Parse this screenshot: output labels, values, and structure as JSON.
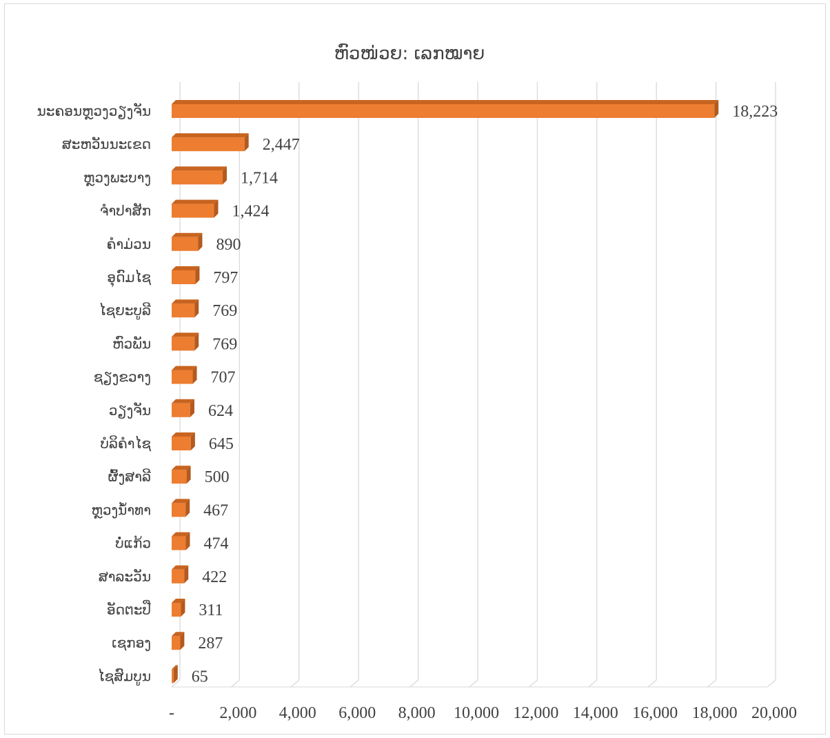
{
  "chart_data": {
    "type": "bar",
    "orientation": "horizontal",
    "title": "ຫົວໜ່ວຍ: ເລກໝາຍ",
    "categories": [
      "ນະຄອນຫຼວງວຽງຈັນ",
      "ສະຫວັນນະເຂດ",
      "ຫຼວງພະບາງ",
      "ຈຳປາສັກ",
      "ຄຳມ່ວນ",
      "ອຸດົມໄຊ",
      "ໄຊຍະບູລີ",
      "ຫົວພັນ",
      "ຊຽງຂວາງ",
      "ວຽງຈັນ",
      "ບໍລິຄຳໄຊ",
      "ຜົ້ງສາລີ",
      "ຫຼວງນ້ຳທາ",
      "ບໍ່ແກ້ວ",
      "ສາລະວັນ",
      "ອັດຕະປື",
      "ເຊກອງ",
      "ໄຊສົມບູນ"
    ],
    "values": [
      18223,
      2447,
      1714,
      1424,
      890,
      797,
      769,
      769,
      707,
      624,
      645,
      500,
      467,
      474,
      422,
      311,
      287,
      65
    ],
    "value_labels": [
      "18,223",
      "2,447",
      "1,714",
      "1,424",
      "890",
      "797",
      "769",
      "769",
      "707",
      "624",
      "645",
      "500",
      "467",
      "474",
      "422",
      "311",
      "287",
      "65"
    ],
    "xlim": [
      0,
      20000
    ],
    "x_ticks": [
      0,
      2000,
      4000,
      6000,
      8000,
      10000,
      12000,
      14000,
      16000,
      18000,
      20000
    ],
    "x_tick_labels": [
      "-",
      "2,000",
      "4,000",
      "6,000",
      "8,000",
      "10,000",
      "12,000",
      "14,000",
      "16,000",
      "18,000",
      "20,000"
    ],
    "xlabel": "",
    "ylabel": "",
    "grid": true,
    "legend": "none",
    "style": "3d",
    "colors": {
      "bar_front": "#ed7d31",
      "bar_side": "#b35a1f",
      "bar_top": "#c8641f",
      "grid": "#d9d9d9",
      "text": "#404040"
    }
  }
}
